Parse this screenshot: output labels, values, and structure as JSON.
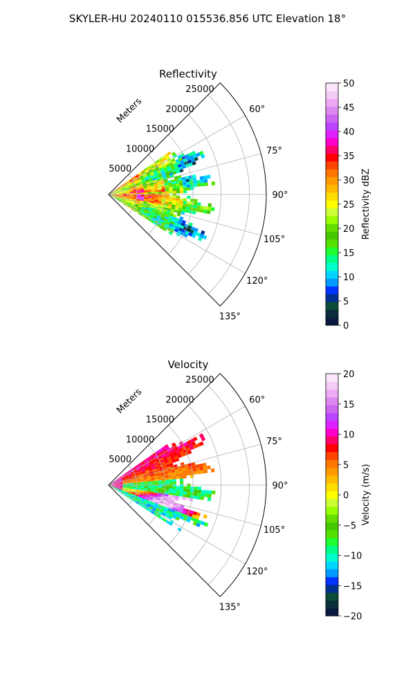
{
  "figure": {
    "suptitle": "SKYLER-HU  20240110  015536.856 UTC Elevation 18°"
  },
  "chart_data": [
    {
      "type": "heatmap",
      "projection": "polar-sector",
      "title": "Reflectivity",
      "range_label": "Meters",
      "range_ticks": [
        5000,
        10000,
        15000,
        20000,
        25000
      ],
      "range_tick_labels": [
        "5000",
        "10000",
        "15000",
        "20000",
        "25000"
      ],
      "range_max": 28000,
      "azimuth_min": 45,
      "azimuth_max": 135,
      "azimuth_ticks": [
        60,
        75,
        90,
        105,
        120,
        135
      ],
      "azimuth_tick_labels": [
        "60°",
        "75°",
        "90°",
        "105°",
        "120°",
        "135°"
      ],
      "data_extent": {
        "range_max_approx": 19000,
        "azimuth_min_approx": 55,
        "azimuth_max_approx": 123
      },
      "grid": true,
      "colorbar": {
        "label": "Reflectivity dBZ",
        "vmin": 0,
        "vmax": 50,
        "ticks": [
          0,
          5,
          10,
          15,
          20,
          25,
          30,
          35,
          40,
          45,
          50
        ],
        "tick_labels": [
          "0",
          "5",
          "10",
          "15",
          "20",
          "25",
          "30",
          "35",
          "40",
          "45",
          "50"
        ],
        "colors": [
          "#0a1a3f",
          "#0b2f3a",
          "#0c4d3a",
          "#00308f",
          "#0033ff",
          "#0099ff",
          "#00d5ff",
          "#00ffcc",
          "#00ff88",
          "#20ff30",
          "#55e000",
          "#44c800",
          "#66dd00",
          "#99ff00",
          "#ccff33",
          "#ffff00",
          "#ffdd00",
          "#ffbb00",
          "#ff9900",
          "#ff7700",
          "#ff4400",
          "#ff0000",
          "#ff0066",
          "#ff00cc",
          "#dd22ff",
          "#bb44ff",
          "#cc66ee",
          "#dd88ee",
          "#eeaaf5",
          "#f5ccf8",
          "#fbe6fc"
        ]
      }
    },
    {
      "type": "heatmap",
      "projection": "polar-sector",
      "title": "Velocity",
      "range_label": "Meters",
      "range_ticks": [
        5000,
        10000,
        15000,
        20000,
        25000
      ],
      "range_tick_labels": [
        "5000",
        "10000",
        "15000",
        "20000",
        "25000"
      ],
      "range_max": 28000,
      "azimuth_min": 45,
      "azimuth_max": 135,
      "azimuth_ticks": [
        60,
        75,
        90,
        105,
        120,
        135
      ],
      "azimuth_tick_labels": [
        "60°",
        "75°",
        "90°",
        "105°",
        "120°",
        "135°"
      ],
      "data_extent": {
        "range_max_approx": 19000,
        "azimuth_min_approx": 55,
        "azimuth_max_approx": 123
      },
      "grid": true,
      "colorbar": {
        "label": "Velocity (m/s)",
        "vmin": -20,
        "vmax": 20,
        "ticks": [
          -20,
          -15,
          -10,
          -5,
          0,
          5,
          10,
          15,
          20
        ],
        "tick_labels": [
          "−20",
          "−15",
          "−10",
          "−5",
          "0",
          "5",
          "10",
          "15",
          "20"
        ],
        "colors": [
          "#0a1a3f",
          "#0b2f3a",
          "#0c4d3a",
          "#00308f",
          "#0033ff",
          "#0099ff",
          "#00d5ff",
          "#00ffcc",
          "#00ff88",
          "#20ff30",
          "#55e000",
          "#44c800",
          "#66dd00",
          "#99ff00",
          "#ccff33",
          "#ffff00",
          "#ffdd00",
          "#ffbb00",
          "#ff9900",
          "#ff7700",
          "#ff4400",
          "#ff0000",
          "#ff0066",
          "#ff00cc",
          "#dd22ff",
          "#bb44ff",
          "#cc66ee",
          "#dd88ee",
          "#eeaaf5",
          "#f5ccf8",
          "#fbe6fc"
        ]
      }
    }
  ]
}
